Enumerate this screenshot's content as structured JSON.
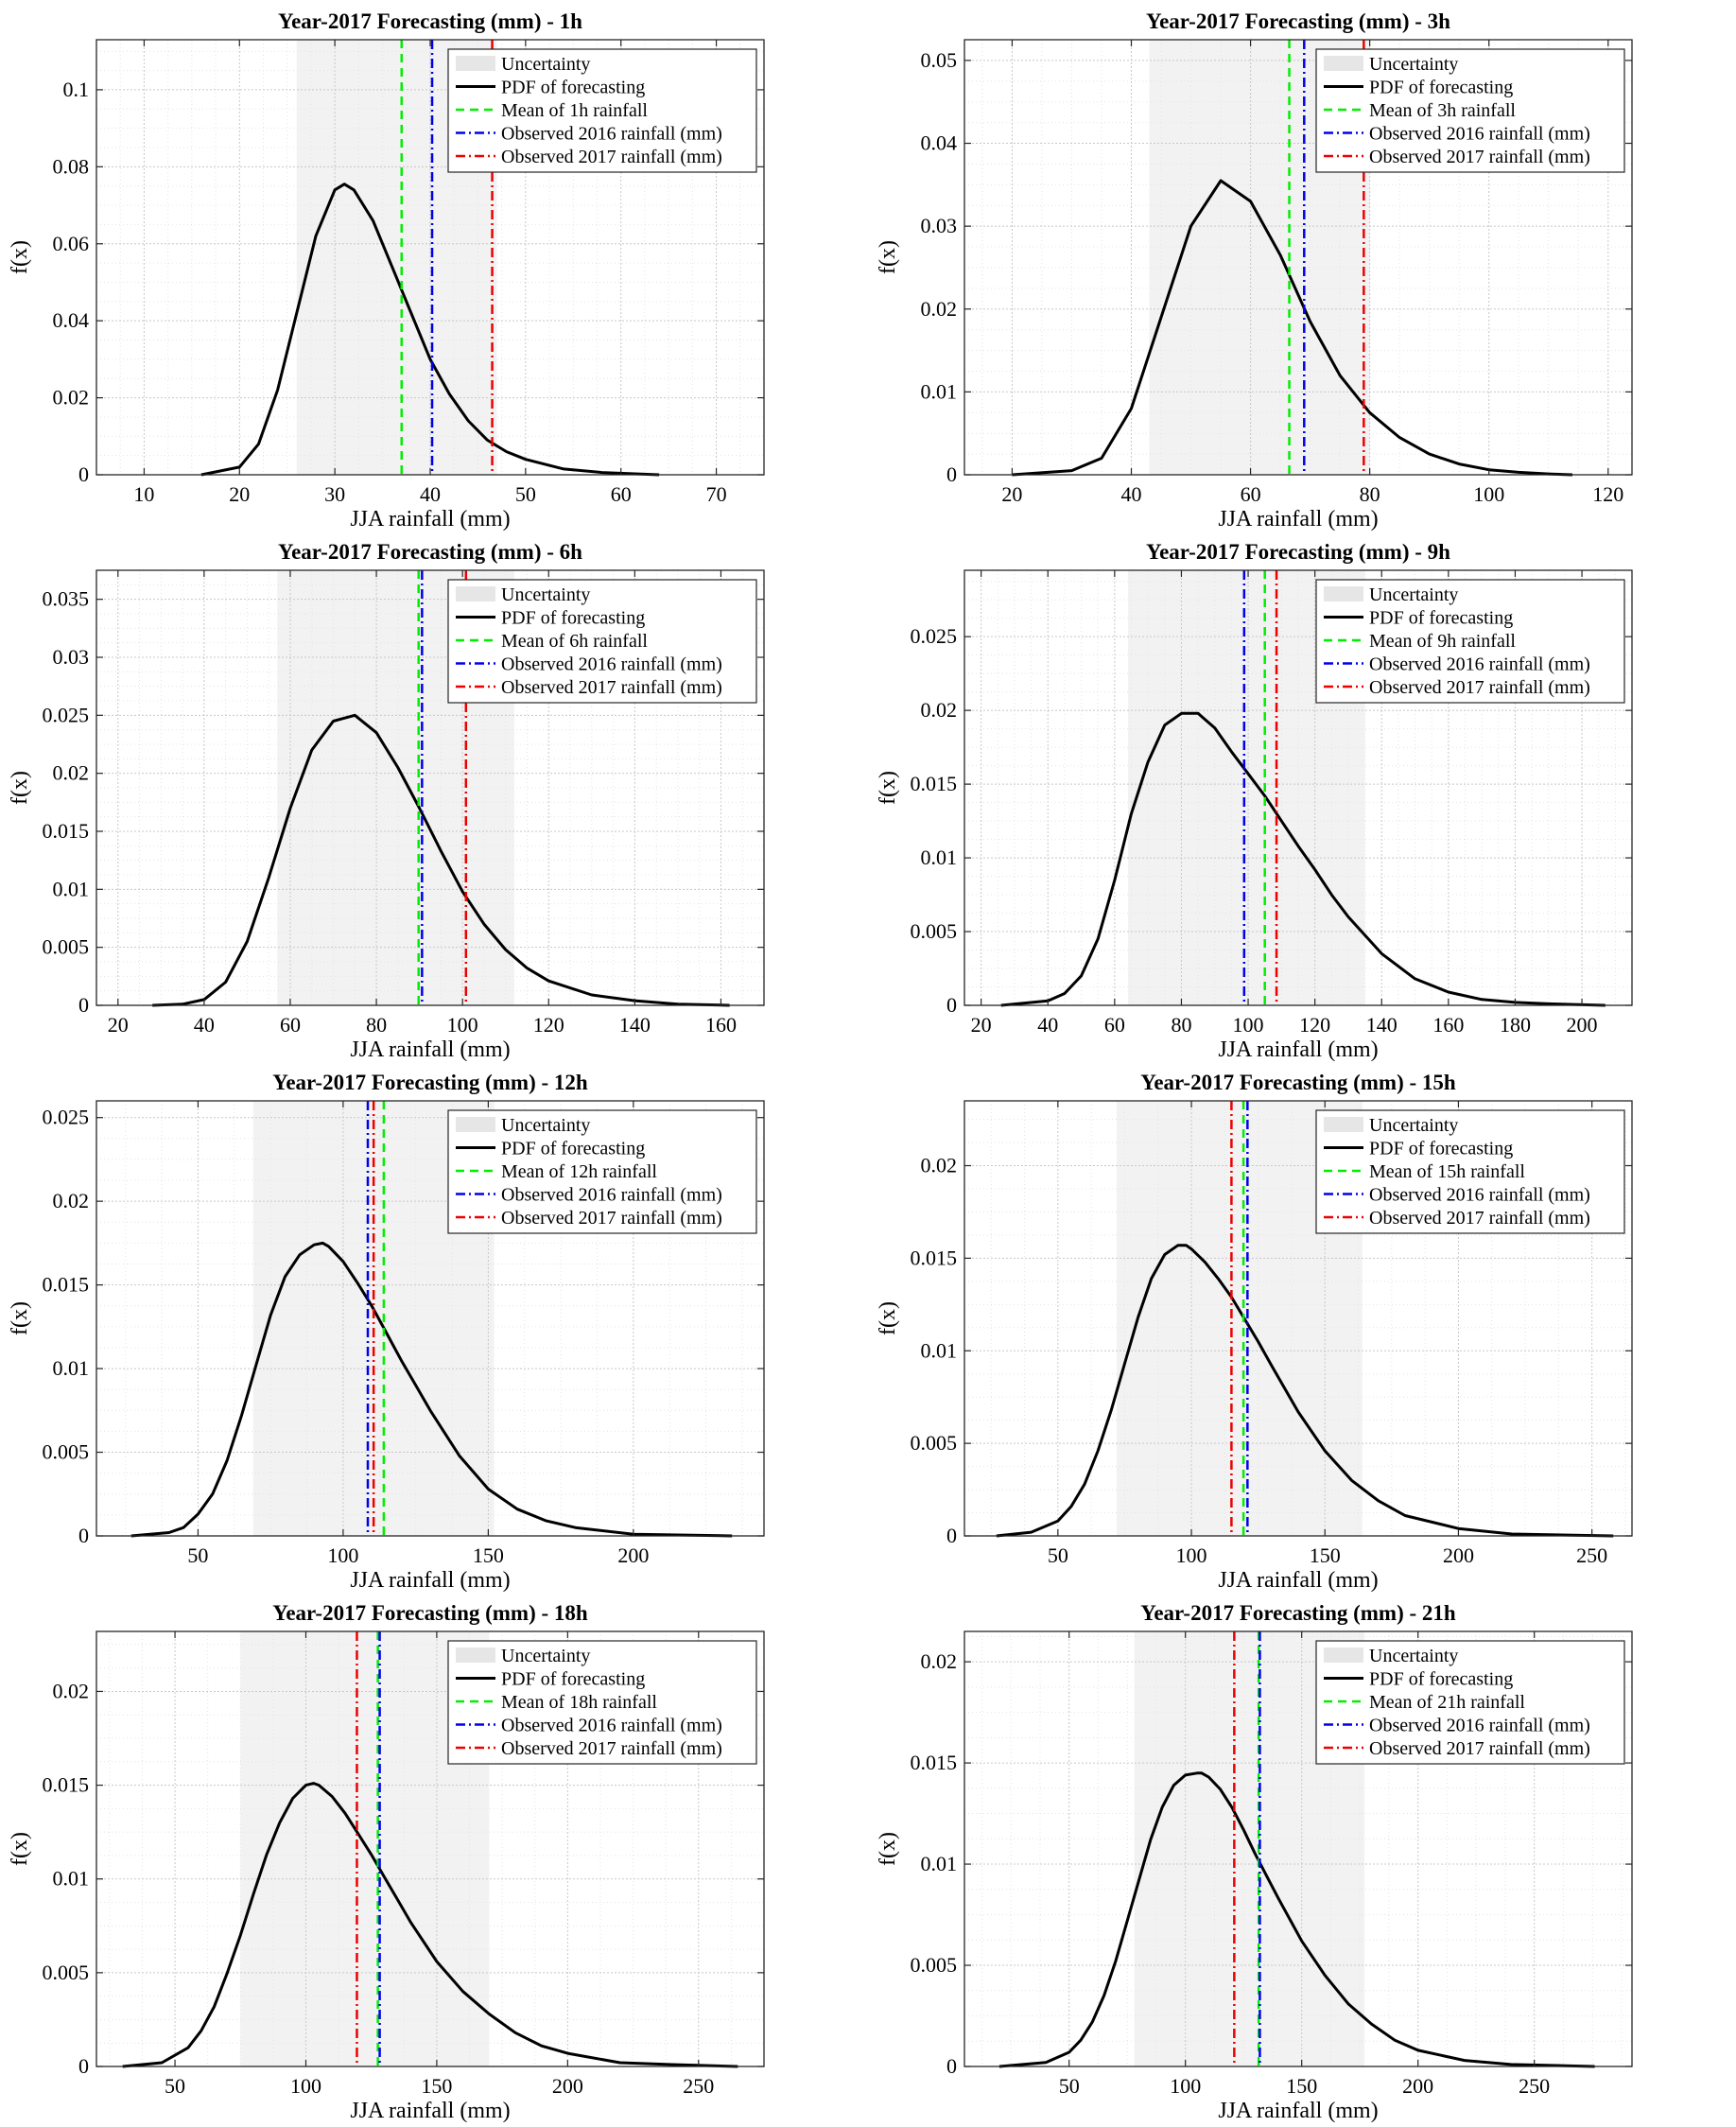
{
  "chart_data": [
    {
      "type": "line",
      "title": "Year-2017 Forecasting (mm) - 1h",
      "xlabel": "JJA rainfall (mm)",
      "ylabel": "f(x)",
      "xlim": [
        5,
        75
      ],
      "ylim": [
        0,
        0.113
      ],
      "xticks": [
        10,
        20,
        30,
        40,
        50,
        60,
        70
      ],
      "yticks": [
        0,
        0.02,
        0.04,
        0.06,
        0.08,
        0.1
      ],
      "grid": true,
      "legend_position": "top-right",
      "uncertainty_band": [
        26,
        47
      ],
      "pdf": {
        "name": "PDF of forecasting",
        "x": [
          16,
          20,
          22,
          24,
          26,
          28,
          30,
          31,
          32,
          34,
          36,
          38,
          40,
          42,
          44,
          46,
          48,
          50,
          54,
          58,
          64
        ],
        "y": [
          0,
          0.002,
          0.008,
          0.022,
          0.042,
          0.062,
          0.074,
          0.0755,
          0.074,
          0.066,
          0.054,
          0.042,
          0.03,
          0.021,
          0.014,
          0.009,
          0.006,
          0.004,
          0.0015,
          0.0006,
          0
        ]
      },
      "vlines": [
        {
          "name": "Mean of 1h rainfall",
          "x": 37,
          "color": "#00ee00",
          "dash": "dashed"
        },
        {
          "name": "Observed 2016 rainfall (mm)",
          "x": 40.2,
          "color": "#0000ee",
          "dash": "dashdot"
        },
        {
          "name": "Observed 2017 rainfall (mm)",
          "x": 46.5,
          "color": "#ee0000",
          "dash": "dashdot"
        }
      ],
      "legend": [
        "Uncertainty",
        "PDF of forecasting",
        "Mean of 1h rainfall",
        "Observed 2016 rainfall (mm)",
        "Observed 2017 rainfall (mm)"
      ]
    },
    {
      "type": "line",
      "title": "Year-2017 Forecasting (mm) - 3h",
      "xlabel": "JJA rainfall (mm)",
      "ylabel": "f(x)",
      "xlim": [
        12,
        124
      ],
      "ylim": [
        0,
        0.0525
      ],
      "xticks": [
        20,
        40,
        60,
        80,
        100,
        120
      ],
      "yticks": [
        0,
        0.01,
        0.02,
        0.03,
        0.04,
        0.05
      ],
      "grid": true,
      "legend_position": "top-right",
      "uncertainty_band": [
        43,
        80
      ],
      "pdf": {
        "name": "PDF of forecasting",
        "x": [
          20,
          30,
          35,
          40,
          45,
          50,
          55,
          60,
          65,
          70,
          75,
          80,
          85,
          90,
          95,
          100,
          105,
          110,
          114
        ],
        "y": [
          0,
          0.0005,
          0.002,
          0.008,
          0.019,
          0.03,
          0.0355,
          0.033,
          0.0265,
          0.0185,
          0.012,
          0.0075,
          0.0045,
          0.0025,
          0.0013,
          0.0006,
          0.0003,
          0.0001,
          0
        ]
      },
      "vlines": [
        {
          "name": "Mean of 3h rainfall",
          "x": 66.5,
          "color": "#00ee00",
          "dash": "dashed"
        },
        {
          "name": "Observed 2016 rainfall (mm)",
          "x": 69,
          "color": "#0000ee",
          "dash": "dashdot"
        },
        {
          "name": "Observed 2017 rainfall (mm)",
          "x": 79,
          "color": "#ee0000",
          "dash": "dashdot"
        }
      ],
      "legend": [
        "Uncertainty",
        "PDF of forecasting",
        "Mean of 3h rainfall",
        "Observed 2016 rainfall (mm)",
        "Observed 2017 rainfall (mm)"
      ]
    },
    {
      "type": "line",
      "title": "Year-2017 Forecasting (mm) - 6h",
      "xlabel": "JJA rainfall (mm)",
      "ylabel": "f(x)",
      "xlim": [
        15,
        170
      ],
      "ylim": [
        0,
        0.0375
      ],
      "xticks": [
        20,
        40,
        60,
        80,
        100,
        120,
        140,
        160
      ],
      "yticks": [
        0,
        0.005,
        0.01,
        0.015,
        0.02,
        0.025,
        0.03,
        0.035
      ],
      "grid": true,
      "legend_position": "top-right",
      "uncertainty_band": [
        57,
        112
      ],
      "pdf": {
        "name": "PDF of forecasting",
        "x": [
          28,
          35,
          40,
          45,
          50,
          55,
          60,
          65,
          70,
          75,
          80,
          85,
          90,
          95,
          100,
          105,
          110,
          115,
          120,
          130,
          140,
          150,
          162
        ],
        "y": [
          0,
          0.0001,
          0.0005,
          0.002,
          0.0055,
          0.011,
          0.017,
          0.022,
          0.0245,
          0.025,
          0.0235,
          0.0205,
          0.017,
          0.0133,
          0.0098,
          0.007,
          0.0048,
          0.0032,
          0.0021,
          0.0009,
          0.0004,
          0.0001,
          0
        ]
      },
      "vlines": [
        {
          "name": "Mean of 6h rainfall",
          "x": 89.8,
          "color": "#00ee00",
          "dash": "dashed"
        },
        {
          "name": "Observed 2016 rainfall (mm)",
          "x": 90.6,
          "color": "#0000ee",
          "dash": "dashdot"
        },
        {
          "name": "Observed 2017 rainfall (mm)",
          "x": 100.8,
          "color": "#ee0000",
          "dash": "dashdot"
        }
      ],
      "legend": [
        "Uncertainty",
        "PDF of forecasting",
        "Mean of 6h rainfall",
        "Observed 2016 rainfall (mm)",
        "Observed 2017 rainfall (mm)"
      ]
    },
    {
      "type": "line",
      "title": "Year-2017 Forecasting (mm) - 9h",
      "xlabel": "JJA rainfall (mm)",
      "ylabel": "f(x)",
      "xlim": [
        15,
        215
      ],
      "ylim": [
        0,
        0.0295
      ],
      "xticks": [
        20,
        40,
        60,
        80,
        100,
        120,
        140,
        160,
        180,
        200
      ],
      "yticks": [
        0,
        0.005,
        0.01,
        0.015,
        0.02,
        0.025
      ],
      "grid": true,
      "legend_position": "top-right",
      "uncertainty_band": [
        64,
        135
      ],
      "pdf": {
        "name": "PDF of forecasting",
        "x": [
          26,
          40,
          45,
          50,
          55,
          60,
          65,
          70,
          75,
          80,
          85,
          90,
          95,
          100,
          105,
          110,
          115,
          120,
          125,
          130,
          140,
          150,
          160,
          170,
          180,
          190,
          207
        ],
        "y": [
          0,
          0.0003,
          0.0008,
          0.002,
          0.0045,
          0.0085,
          0.013,
          0.0165,
          0.019,
          0.0198,
          0.0198,
          0.0188,
          0.0172,
          0.0157,
          0.0142,
          0.0125,
          0.0108,
          0.0092,
          0.0075,
          0.006,
          0.0035,
          0.0018,
          0.0009,
          0.0004,
          0.0002,
          0.0001,
          0
        ]
      },
      "vlines": [
        {
          "name": "Observed 2016 rainfall (mm)",
          "x": 98.8,
          "color": "#0000ee",
          "dash": "dashdot"
        },
        {
          "name": "Mean of 9h rainfall",
          "x": 105,
          "color": "#00ee00",
          "dash": "dashed"
        },
        {
          "name": "Observed 2017 rainfall (mm)",
          "x": 108.5,
          "color": "#ee0000",
          "dash": "dashdot"
        }
      ],
      "legend": [
        "Uncertainty",
        "PDF of forecasting",
        "Mean of 9h rainfall",
        "Observed 2016 rainfall (mm)",
        "Observed 2017 rainfall (mm)"
      ]
    },
    {
      "type": "line",
      "title": "Year-2017 Forecasting (mm) - 12h",
      "xlabel": "JJA rainfall (mm)",
      "ylabel": "f(x)",
      "xlim": [
        15,
        245
      ],
      "ylim": [
        0,
        0.026
      ],
      "xticks": [
        50,
        100,
        150,
        200
      ],
      "yticks": [
        0,
        0.005,
        0.01,
        0.015,
        0.02,
        0.025
      ],
      "grid": true,
      "legend_position": "top-right",
      "uncertainty_band": [
        69,
        152
      ],
      "pdf": {
        "name": "PDF of forecasting",
        "x": [
          27,
          40,
          45,
          50,
          55,
          60,
          65,
          70,
          75,
          80,
          85,
          90,
          93,
          95,
          100,
          105,
          110,
          115,
          120,
          125,
          130,
          140,
          150,
          160,
          170,
          180,
          200,
          234
        ],
        "y": [
          0,
          0.0002,
          0.0005,
          0.0013,
          0.0025,
          0.0045,
          0.0072,
          0.0102,
          0.0132,
          0.0155,
          0.0168,
          0.0174,
          0.0175,
          0.0173,
          0.0164,
          0.0151,
          0.0137,
          0.0121,
          0.0105,
          0.009,
          0.0075,
          0.0048,
          0.0028,
          0.0016,
          0.0009,
          0.0005,
          0.0001,
          0
        ]
      },
      "vlines": [
        {
          "name": "Observed 2016 rainfall (mm)",
          "x": 108.5,
          "color": "#0000ee",
          "dash": "dashdot"
        },
        {
          "name": "Observed 2017 rainfall (mm)",
          "x": 110.5,
          "color": "#ee0000",
          "dash": "dashdot"
        },
        {
          "name": "Mean of 12h rainfall",
          "x": 114,
          "color": "#00ee00",
          "dash": "dashed"
        }
      ],
      "legend": [
        "Uncertainty",
        "PDF of forecasting",
        "Mean of 12h rainfall",
        "Observed 2016 rainfall (mm)",
        "Observed 2017 rainfall (mm)"
      ]
    },
    {
      "type": "line",
      "title": "Year-2017 Forecasting (mm) - 15h",
      "xlabel": "JJA rainfall (mm)",
      "ylabel": "f(x)",
      "xlim": [
        15,
        265
      ],
      "ylim": [
        0,
        0.0235
      ],
      "xticks": [
        50,
        100,
        150,
        200,
        250
      ],
      "yticks": [
        0,
        0.005,
        0.01,
        0.015,
        0.02
      ],
      "grid": true,
      "legend_position": "top-right",
      "uncertainty_band": [
        72,
        164
      ],
      "pdf": {
        "name": "PDF of forecasting",
        "x": [
          27,
          40,
          50,
          55,
          60,
          65,
          70,
          75,
          80,
          85,
          90,
          95,
          98,
          100,
          105,
          110,
          115,
          120,
          125,
          130,
          140,
          150,
          160,
          170,
          180,
          200,
          220,
          258
        ],
        "y": [
          0,
          0.0002,
          0.0008,
          0.0016,
          0.0028,
          0.0046,
          0.0068,
          0.0093,
          0.0118,
          0.0139,
          0.0152,
          0.0157,
          0.0157,
          0.0155,
          0.0148,
          0.0139,
          0.0129,
          0.0117,
          0.0105,
          0.0092,
          0.0067,
          0.0046,
          0.003,
          0.0019,
          0.0011,
          0.0004,
          0.0001,
          0
        ]
      },
      "vlines": [
        {
          "name": "Observed 2017 rainfall (mm)",
          "x": 115,
          "color": "#ee0000",
          "dash": "dashdot"
        },
        {
          "name": "Mean of 15h rainfall",
          "x": 119.5,
          "color": "#00ee00",
          "dash": "dashed"
        },
        {
          "name": "Observed 2016 rainfall (mm)",
          "x": 121,
          "color": "#0000ee",
          "dash": "dashdot"
        }
      ],
      "legend": [
        "Uncertainty",
        "PDF of forecasting",
        "Mean of 15h rainfall",
        "Observed 2016 rainfall (mm)",
        "Observed 2017 rainfall (mm)"
      ]
    },
    {
      "type": "line",
      "title": "Year-2017 Forecasting (mm) - 18h",
      "xlabel": "JJA rainfall (mm)",
      "ylabel": "f(x)",
      "xlim": [
        20,
        275
      ],
      "ylim": [
        0,
        0.0232
      ],
      "xticks": [
        50,
        100,
        150,
        200,
        250
      ],
      "yticks": [
        0,
        0.005,
        0.01,
        0.015,
        0.02
      ],
      "grid": true,
      "legend_position": "top-right",
      "uncertainty_band": [
        75,
        170
      ],
      "pdf": {
        "name": "PDF of forecasting",
        "x": [
          30,
          45,
          55,
          60,
          65,
          70,
          75,
          80,
          85,
          90,
          95,
          100,
          103,
          105,
          110,
          115,
          120,
          125,
          130,
          135,
          140,
          150,
          160,
          170,
          180,
          190,
          200,
          220,
          240,
          265
        ],
        "y": [
          0,
          0.0002,
          0.001,
          0.0019,
          0.0032,
          0.005,
          0.007,
          0.0092,
          0.0113,
          0.013,
          0.0143,
          0.015,
          0.0151,
          0.015,
          0.0144,
          0.0135,
          0.0124,
          0.0113,
          0.0101,
          0.0089,
          0.0077,
          0.0056,
          0.004,
          0.0028,
          0.0018,
          0.0011,
          0.0007,
          0.0002,
          0.0001,
          0
        ]
      },
      "vlines": [
        {
          "name": "Observed 2017 rainfall (mm)",
          "x": 119.5,
          "color": "#ee0000",
          "dash": "dashdot"
        },
        {
          "name": "Mean of 18h rainfall",
          "x": 127.5,
          "color": "#00ee00",
          "dash": "dashed"
        },
        {
          "name": "Observed 2016 rainfall (mm)",
          "x": 128.2,
          "color": "#0000ee",
          "dash": "dashdot"
        }
      ],
      "legend": [
        "Uncertainty",
        "PDF of forecasting",
        "Mean of 18h rainfall",
        "Observed 2016 rainfall (mm)",
        "Observed 2017 rainfall (mm)"
      ]
    },
    {
      "type": "line",
      "title": "Year-2017 Forecasting (mm) - 21h",
      "xlabel": "JJA rainfall (mm)",
      "ylabel": "f(x)",
      "xlim": [
        5,
        292
      ],
      "ylim": [
        0,
        0.0215
      ],
      "xticks": [
        50,
        100,
        150,
        200,
        250
      ],
      "yticks": [
        0,
        0.005,
        0.01,
        0.015,
        0.02
      ],
      "grid": true,
      "legend_position": "top-right",
      "uncertainty_band": [
        78,
        177
      ],
      "pdf": {
        "name": "PDF of forecasting",
        "x": [
          20,
          40,
          50,
          55,
          60,
          65,
          70,
          75,
          80,
          85,
          90,
          95,
          100,
          105,
          107,
          110,
          115,
          120,
          125,
          130,
          135,
          140,
          150,
          160,
          170,
          180,
          190,
          200,
          220,
          240,
          276
        ],
        "y": [
          0,
          0.0002,
          0.0007,
          0.0013,
          0.0022,
          0.0035,
          0.0052,
          0.0072,
          0.0092,
          0.0112,
          0.0128,
          0.0139,
          0.0144,
          0.0145,
          0.0145,
          0.0143,
          0.0137,
          0.0128,
          0.0117,
          0.0105,
          0.0094,
          0.0083,
          0.0062,
          0.0045,
          0.0031,
          0.0021,
          0.0013,
          0.0008,
          0.0003,
          0.0001,
          0
        ]
      },
      "vlines": [
        {
          "name": "Observed 2017 rainfall (mm)",
          "x": 121,
          "color": "#ee0000",
          "dash": "dashdot"
        },
        {
          "name": "Mean of 21h rainfall",
          "x": 131.5,
          "color": "#00ee00",
          "dash": "dashed"
        },
        {
          "name": "Observed 2016 rainfall (mm)",
          "x": 132,
          "color": "#0000ee",
          "dash": "dashdot"
        }
      ],
      "legend": [
        "Uncertainty",
        "PDF of forecasting",
        "Mean of 21h rainfall",
        "Observed 2016 rainfall (mm)",
        "Observed 2017 rainfall (mm)"
      ]
    }
  ]
}
